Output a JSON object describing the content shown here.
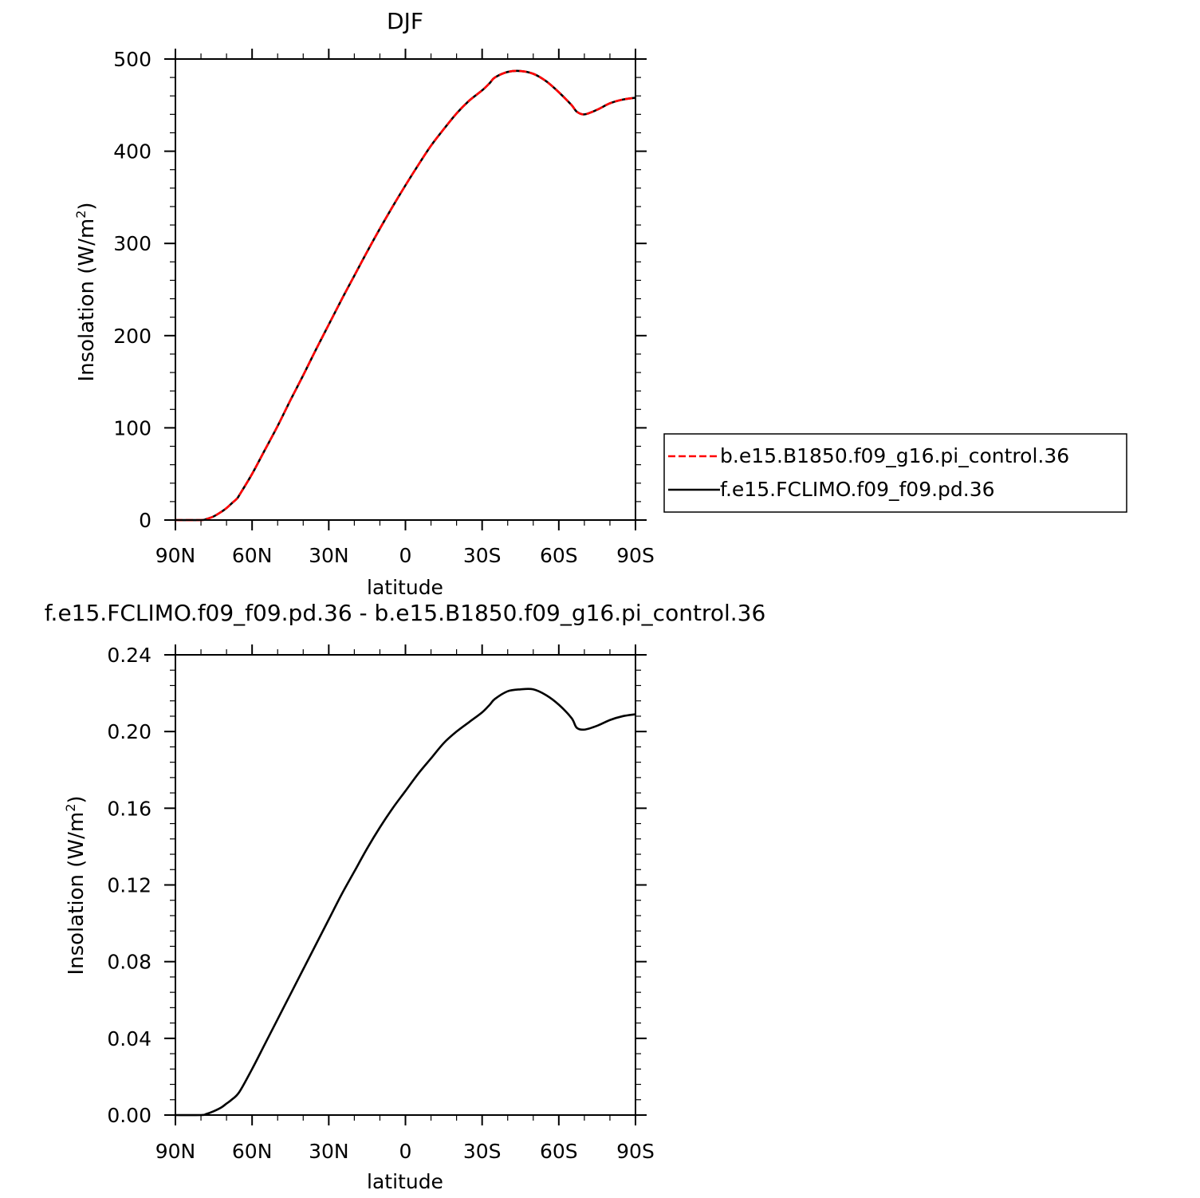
{
  "chart_data": [
    {
      "type": "line",
      "title": "DJF",
      "xlabel": "latitude",
      "ylabel_main": "Insolation  (W/m",
      "ylabel_sup": "2",
      "ylabel_close": ")",
      "xlim": [
        -90,
        90
      ],
      "xticks": [
        -90,
        -60,
        -30,
        0,
        30,
        60,
        90
      ],
      "xtick_labels": [
        "90N",
        "60N",
        "30N",
        "0",
        "30S",
        "60S",
        "90S"
      ],
      "ylim": [
        0,
        500
      ],
      "yticks": [
        0,
        100,
        200,
        300,
        400,
        500
      ],
      "ytick_labels": [
        "0",
        "100",
        "200",
        "300",
        "400",
        "500"
      ],
      "x": [
        -90,
        -80,
        -78,
        -75,
        -72,
        -70,
        -68,
        -66,
        -65,
        -60,
        -55,
        -50,
        -45,
        -40,
        -35,
        -30,
        -25,
        -20,
        -15,
        -10,
        -5,
        0,
        5,
        10,
        15,
        20,
        25,
        30,
        33,
        35,
        40,
        45,
        50,
        55,
        60,
        65,
        67,
        70,
        75,
        80,
        85,
        90
      ],
      "series": [
        {
          "name": "b.e15.B1850.f09_g16.pi_control.36",
          "color": "#ff0000",
          "dash": "dashed",
          "values": [
            0,
            0,
            1,
            4,
            9,
            13,
            18,
            23,
            27,
            50,
            76,
            102,
            130,
            157,
            185,
            212,
            239,
            265,
            291,
            316,
            340,
            363,
            385,
            406,
            424,
            441,
            455,
            466,
            474,
            480,
            486,
            487,
            484,
            476,
            464,
            450,
            443,
            440,
            445,
            452,
            456,
            458
          ]
        },
        {
          "name": "f.e15.FCLIMO.f09_f09.pd.36",
          "color": "#000000",
          "dash": "solid",
          "values": [
            0,
            0,
            1,
            4,
            9,
            13,
            18,
            23,
            27,
            50,
            76,
            102,
            130,
            157,
            185,
            212,
            239,
            265,
            291,
            316,
            340,
            363,
            385,
            406,
            424,
            441,
            455,
            466,
            474,
            480,
            486,
            487,
            484,
            476,
            464,
            450,
            443,
            440,
            445,
            452,
            456,
            458
          ]
        }
      ],
      "legend_position": "right"
    },
    {
      "type": "line",
      "title": "f.e15.FCLIMO.f09_f09.pd.36 - b.e15.B1850.f09_g16.pi_control.36",
      "xlabel": "latitude",
      "ylabel_main": "Insolation  (W/m",
      "ylabel_sup": "2",
      "ylabel_close": ")",
      "xlim": [
        -90,
        90
      ],
      "xticks": [
        -90,
        -60,
        -30,
        0,
        30,
        60,
        90
      ],
      "xtick_labels": [
        "90N",
        "60N",
        "30N",
        "0",
        "30S",
        "60S",
        "90S"
      ],
      "ylim": [
        0,
        0.24
      ],
      "yticks": [
        0,
        0.04,
        0.08,
        0.12,
        0.16,
        0.2,
        0.24
      ],
      "ytick_labels": [
        "0.00",
        "0.04",
        "0.08",
        "0.12",
        "0.16",
        "0.20",
        "0.24"
      ],
      "x": [
        -90,
        -80,
        -78,
        -75,
        -72,
        -70,
        -68,
        -65,
        -60,
        -55,
        -50,
        -45,
        -40,
        -35,
        -30,
        -25,
        -20,
        -15,
        -10,
        -5,
        0,
        5,
        10,
        15,
        20,
        25,
        30,
        33,
        35,
        40,
        45,
        50,
        55,
        60,
        65,
        67,
        70,
        75,
        80,
        85,
        90
      ],
      "series": [
        {
          "color": "#000000",
          "dash": "solid",
          "values": [
            0,
            0,
            0.0005,
            0.002,
            0.004,
            0.006,
            0.008,
            0.012,
            0.024,
            0.037,
            0.05,
            0.063,
            0.076,
            0.089,
            0.102,
            0.115,
            0.127,
            0.139,
            0.15,
            0.16,
            0.169,
            0.178,
            0.186,
            0.194,
            0.2,
            0.205,
            0.21,
            0.214,
            0.217,
            0.221,
            0.222,
            0.222,
            0.219,
            0.214,
            0.207,
            0.202,
            0.201,
            0.203,
            0.206,
            0.208,
            0.209
          ]
        }
      ]
    }
  ]
}
